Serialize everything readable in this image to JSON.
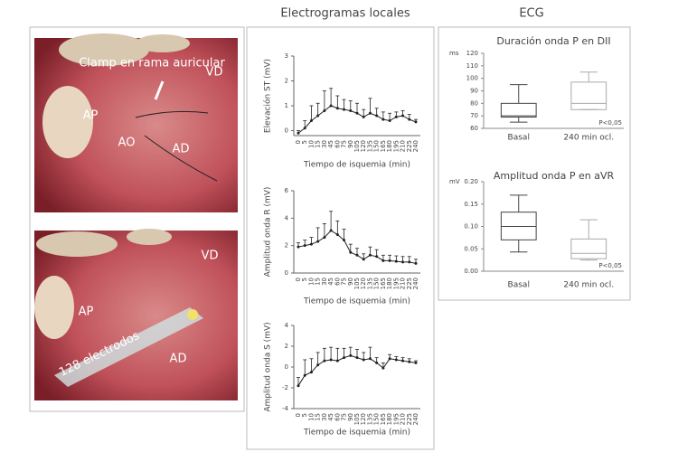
{
  "headers": {
    "left": "Electrogramas locales",
    "right": "ECG"
  },
  "photos": [
    {
      "labels": [
        "Clamp en rama auricular",
        "VD",
        "AP",
        "AO",
        "AD"
      ]
    },
    {
      "labels": [
        "VD",
        "AP",
        "AD",
        "128 electrodos"
      ]
    }
  ],
  "chart_data": [
    {
      "type": "line",
      "ylabel": "Elevación ST (mV)",
      "xlabel": "Tiempo de isquemia (min)",
      "categories": [
        "0",
        "5",
        "10",
        "15",
        "30",
        "45",
        "60",
        "75",
        "90",
        "105",
        "120",
        "135",
        "150",
        "165",
        "180",
        "195",
        "210",
        "225",
        "240"
      ],
      "values": [
        -0.1,
        0.1,
        0.4,
        0.6,
        0.8,
        1.0,
        0.9,
        0.85,
        0.8,
        0.7,
        0.55,
        0.7,
        0.6,
        0.45,
        0.4,
        0.55,
        0.6,
        0.45,
        0.35
      ],
      "errors": [
        0.1,
        0.3,
        0.6,
        0.5,
        0.8,
        0.7,
        0.5,
        0.4,
        0.4,
        0.4,
        0.3,
        0.6,
        0.3,
        0.3,
        0.3,
        0.2,
        0.2,
        0.2,
        0.1
      ],
      "color": "#222",
      "ylim": [
        -0.2,
        3
      ],
      "yticks": [
        0,
        1,
        2,
        3
      ]
    },
    {
      "type": "line",
      "ylabel": "Amplitud onda R (mV)",
      "xlabel": "Tiempo de isquemia (min)",
      "categories": [
        "0",
        "5",
        "10",
        "15",
        "30",
        "45",
        "60",
        "75",
        "90",
        "105",
        "120",
        "135",
        "150",
        "165",
        "180",
        "195",
        "210",
        "225",
        "240"
      ],
      "values": [
        1.9,
        2.0,
        2.1,
        2.3,
        2.6,
        3.1,
        2.8,
        2.4,
        1.5,
        1.3,
        1.0,
        1.3,
        1.2,
        0.9,
        0.9,
        0.85,
        0.8,
        0.8,
        0.7
      ],
      "errors": [
        0.3,
        0.4,
        0.5,
        1.0,
        1.0,
        1.4,
        1.0,
        0.8,
        0.6,
        0.5,
        0.4,
        0.6,
        0.5,
        0.4,
        0.4,
        0.4,
        0.4,
        0.4,
        0.3
      ],
      "color": "#222",
      "ylim": [
        0,
        6
      ],
      "yticks": [
        0,
        2,
        4,
        6
      ]
    },
    {
      "type": "line",
      "ylabel": "Amplitud onda S (mV)",
      "xlabel": "Tiempo de isquemia (min)",
      "categories": [
        "0",
        "5",
        "10",
        "15",
        "30",
        "45",
        "60",
        "75",
        "90",
        "105",
        "120",
        "135",
        "150",
        "165",
        "180",
        "195",
        "210",
        "225",
        "240"
      ],
      "values": [
        -1.8,
        -0.8,
        -0.5,
        0.2,
        0.6,
        0.7,
        0.6,
        0.9,
        1.1,
        0.9,
        0.7,
        0.8,
        0.4,
        -0.1,
        0.8,
        0.7,
        0.6,
        0.5,
        0.4
      ],
      "errors": [
        0.8,
        1.5,
        1.3,
        1.2,
        1.2,
        1.2,
        1.2,
        0.9,
        0.8,
        0.8,
        0.7,
        1.1,
        0.5,
        0.5,
        0.4,
        0.3,
        0.3,
        0.3,
        0.2
      ],
      "color": "#222",
      "ylim": [
        -4,
        4
      ],
      "yticks": [
        -4,
        -2,
        0,
        2,
        4
      ]
    },
    {
      "type": "box",
      "title": "Duración onda P en DII",
      "ylabel": "ms",
      "annotation": "P<0,05",
      "categories": [
        "Basal",
        "240 min ocl."
      ],
      "boxes": [
        {
          "min": 65,
          "q1": 69,
          "median": 70,
          "q3": 80,
          "max": 95
        },
        {
          "min": 75,
          "q1": 75,
          "median": 80,
          "q3": 97,
          "max": 105
        }
      ],
      "colors": [
        "#444",
        "#aaa"
      ],
      "ylim": [
        60,
        120
      ],
      "yticks": [
        60,
        70,
        80,
        90,
        100,
        110,
        120
      ]
    },
    {
      "type": "box",
      "title": "Amplitud onda P en aVR",
      "ylabel": "mV",
      "annotation": "P<0,05",
      "categories": [
        "Basal",
        "240 min ocl."
      ],
      "boxes": [
        {
          "min": 0.043,
          "q1": 0.07,
          "median": 0.1,
          "q3": 0.132,
          "max": 0.17
        },
        {
          "min": 0.025,
          "q1": 0.028,
          "median": 0.04,
          "q3": 0.072,
          "max": 0.115
        }
      ],
      "colors": [
        "#444",
        "#aaa"
      ],
      "ylim": [
        0,
        0.2
      ],
      "yticks": [
        {
          "value": 0,
          "label": "0.00"
        },
        {
          "value": 0.05,
          "label": "0.05"
        },
        {
          "value": 0.1,
          "label": "0.10"
        },
        {
          "value": 0.15,
          "label": "0.15"
        },
        {
          "value": 0.2,
          "label": "0.20"
        }
      ]
    }
  ]
}
